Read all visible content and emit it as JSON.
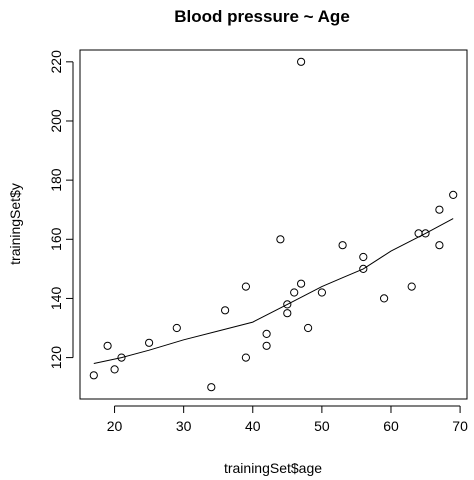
{
  "chart_data": {
    "type": "scatter",
    "title": "Blood pressure ~ Age",
    "xlabel": "trainingSet$age",
    "ylabel": "trainingSet$y",
    "xlim": [
      15,
      71
    ],
    "ylim": [
      106,
      224
    ],
    "xticks": [
      20,
      30,
      40,
      50,
      60,
      70
    ],
    "yticks": [
      120,
      140,
      160,
      180,
      200,
      220
    ],
    "grid": false,
    "points": [
      {
        "x": 17,
        "y": 114
      },
      {
        "x": 19,
        "y": 124
      },
      {
        "x": 20,
        "y": 116
      },
      {
        "x": 21,
        "y": 120
      },
      {
        "x": 25,
        "y": 125
      },
      {
        "x": 29,
        "y": 130
      },
      {
        "x": 34,
        "y": 110
      },
      {
        "x": 36,
        "y": 136
      },
      {
        "x": 39,
        "y": 144
      },
      {
        "x": 39,
        "y": 120
      },
      {
        "x": 42,
        "y": 128
      },
      {
        "x": 42,
        "y": 124
      },
      {
        "x": 44,
        "y": 160
      },
      {
        "x": 45,
        "y": 138
      },
      {
        "x": 45,
        "y": 135
      },
      {
        "x": 46,
        "y": 142
      },
      {
        "x": 47,
        "y": 220
      },
      {
        "x": 47,
        "y": 145
      },
      {
        "x": 48,
        "y": 130
      },
      {
        "x": 50,
        "y": 142
      },
      {
        "x": 53,
        "y": 158
      },
      {
        "x": 56,
        "y": 154
      },
      {
        "x": 56,
        "y": 150
      },
      {
        "x": 59,
        "y": 140
      },
      {
        "x": 63,
        "y": 144
      },
      {
        "x": 64,
        "y": 162
      },
      {
        "x": 65,
        "y": 162
      },
      {
        "x": 67,
        "y": 170
      },
      {
        "x": 67,
        "y": 158
      },
      {
        "x": 69,
        "y": 175
      }
    ],
    "smooth_line": {
      "x": [
        17,
        21,
        25,
        30,
        35,
        40,
        45,
        50,
        53,
        56,
        60,
        65,
        69
      ],
      "y": [
        118,
        120,
        122.5,
        126,
        129,
        132,
        138,
        144,
        147,
        150,
        156,
        162,
        167
      ]
    }
  }
}
